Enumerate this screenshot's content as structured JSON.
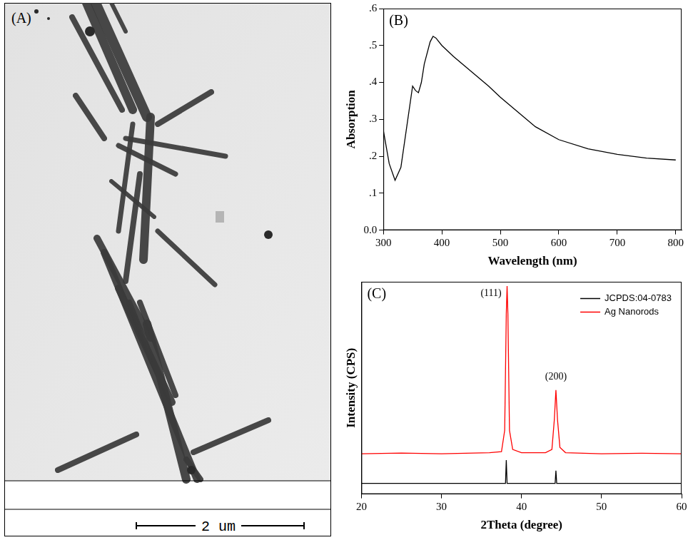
{
  "image": {
    "panel": "(A)",
    "scale_bar": "2 um"
  },
  "chart_data": [
    {
      "panel": "(B)",
      "type": "line",
      "x_label": "Wavelength (nm)",
      "y_label": "Absorption",
      "x": [
        300,
        310,
        320,
        330,
        340,
        350,
        355,
        360,
        365,
        370,
        380,
        385,
        390,
        400,
        420,
        450,
        480,
        500,
        530,
        560,
        600,
        650,
        700,
        750,
        800
      ],
      "values": [
        0.27,
        0.18,
        0.135,
        0.17,
        0.28,
        0.39,
        0.378,
        0.372,
        0.4,
        0.45,
        0.51,
        0.525,
        0.52,
        0.5,
        0.47,
        0.43,
        0.39,
        0.36,
        0.32,
        0.28,
        0.245,
        0.22,
        0.205,
        0.195,
        0.19
      ],
      "color": "#000000",
      "xlim": [
        300,
        810
      ],
      "xticks": [
        300,
        400,
        500,
        600,
        700,
        800
      ],
      "ylim": [
        0,
        0.6
      ],
      "yticks": [
        {
          "value": 0,
          "label": "0.0"
        },
        {
          "value": 0.1,
          "label": ".1"
        },
        {
          "value": 0.2,
          "label": ".2"
        },
        {
          "value": 0.3,
          "label": ".3"
        },
        {
          "value": 0.4,
          "label": ".4"
        },
        {
          "value": 0.5,
          "label": ".5"
        },
        {
          "value": 0.6,
          "label": ".6"
        }
      ],
      "grid": false
    },
    {
      "panel": "(C)",
      "type": "line",
      "x_label": "2Theta (degree)",
      "y_label": "Intensity (CPS)",
      "series": [
        {
          "name": "JCPDS:04-0783",
          "color": "#000000",
          "x": [
            20,
            38.0,
            38.1,
            38.2,
            44.2,
            44.3,
            44.4,
            60
          ],
          "values": [
            5,
            5,
            16,
            5,
            5,
            11,
            5,
            5
          ]
        },
        {
          "name": "Ag Nanorods",
          "color": "#ff0000",
          "x": [
            20,
            25,
            30,
            36,
            37.5,
            37.9,
            38.1,
            38.2,
            38.3,
            38.5,
            38.9,
            40,
            43,
            43.8,
            44.1,
            44.3,
            44.5,
            44.8,
            45.5,
            50,
            55,
            60
          ],
          "values": [
            19,
            19.3,
            19,
            19.5,
            20,
            30,
            85,
            98,
            85,
            30,
            21,
            19.5,
            19.5,
            21,
            35,
            49,
            35,
            22,
            19.5,
            19,
            19.2,
            19
          ]
        }
      ],
      "xlim": [
        20,
        60
      ],
      "xticks": [
        20,
        30,
        40,
        50,
        60
      ],
      "ylim": [
        0,
        100
      ],
      "tick_labels": "x",
      "legend": "upper right",
      "grid": false,
      "annotations": [
        {
          "text": "(111)",
          "x": 36.2,
          "y": 92
        },
        {
          "text": "(200)",
          "x": 44.3,
          "y": 53
        }
      ]
    }
  ]
}
